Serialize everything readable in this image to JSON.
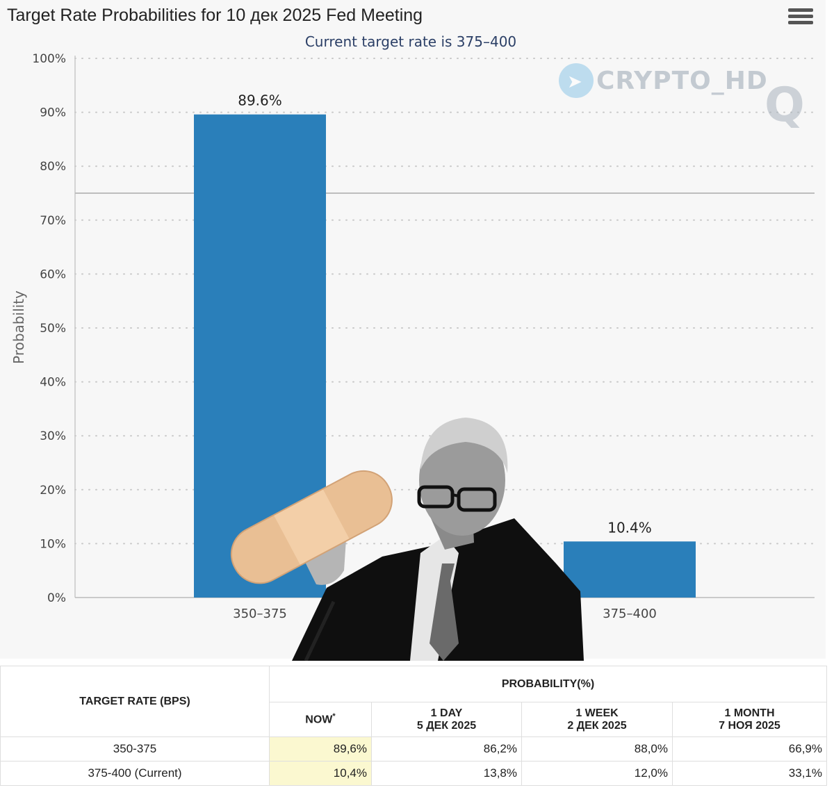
{
  "header": {
    "title": "Target Rate Probabilities for 10 дек 2025 Fed Meeting",
    "menu_icon": "hamburger-menu-icon"
  },
  "chart_data": {
    "type": "bar",
    "title": "Target Rate Probabilities for 10 дек 2025 Fed Meeting",
    "subtitle": "Current target rate is 375–400",
    "categories": [
      "350–375",
      "375–400"
    ],
    "values": [
      89.6,
      10.4
    ],
    "data_labels": [
      "89.6%",
      "10.4%"
    ],
    "ylabel": "Probability",
    "xlabel": "",
    "ylim": [
      0,
      100
    ],
    "yticks": [
      "0%",
      "10%",
      "20%",
      "30%",
      "40%",
      "50%",
      "60%",
      "70%",
      "80%",
      "90%",
      "100%"
    ],
    "reference_line": 75,
    "grid": true,
    "bar_color": "#2a7fba"
  },
  "watermark": {
    "text": "CRYPTO_HD",
    "letter": "Q",
    "icon": "telegram-icon"
  },
  "photo": {
    "icon": "person-with-bandage-image"
  },
  "table": {
    "header_rate": "TARGET RATE (BPS)",
    "header_probability": "PROBABILITY(%)",
    "columns": [
      {
        "line1": "NOW",
        "sup": "*",
        "line2": ""
      },
      {
        "line1": "1 DAY",
        "line2": "5 ДЕК 2025"
      },
      {
        "line1": "1 WEEK",
        "line2": "2 ДЕК 2025"
      },
      {
        "line1": "1 MONTH",
        "line2": "7 НОЯ 2025"
      }
    ],
    "rows": [
      {
        "rate": "350-375",
        "values": [
          "89,6%",
          "86,2%",
          "88,0%",
          "66,9%"
        ]
      },
      {
        "rate": "375-400 (Current)",
        "values": [
          "10,4%",
          "13,8%",
          "12,0%",
          "33,1%"
        ]
      }
    ],
    "now_highlight_color": "#fbf8d0"
  }
}
